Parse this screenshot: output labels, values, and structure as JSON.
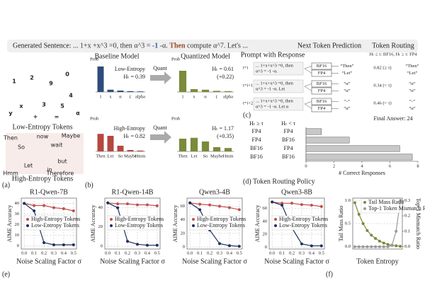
{
  "figure": {
    "sentence_label": "Generated Sentence:",
    "sentence": [
      {
        "text": " ... 1+x +x^3 =0, then α^3 = ",
        "color": "#333"
      },
      {
        "text": "-1",
        "color": "#2b5fa8"
      },
      {
        "text": " -α. ",
        "color": "#333"
      },
      {
        "text": "Then",
        "color": "#9a4a2a"
      },
      {
        "text": " compute α^7. Let's ...",
        "color": "#333"
      }
    ],
    "wordcloud_low": [
      "1",
      "2",
      "9",
      "0",
      "x",
      "3",
      "5",
      "y",
      "4",
      "+",
      "=",
      "α"
    ],
    "wordcloud_high": [
      "So",
      "wait",
      "but",
      "Let",
      "in",
      "Therefore",
      "Then",
      "Maybe",
      "Hmm",
      "now"
    ],
    "low_label": "Low-Entropy Tokens",
    "high_label": "High-Entropy Tokens",
    "baseline_title": "Baseline Model",
    "quantized_title": "Quantized Model",
    "quant_labels": [
      "Quant",
      "Quant"
    ],
    "labels": {
      "a": "(a)",
      "b": "(b)",
      "c": "(c)",
      "d": "(d) Token Routing Policy",
      "e": "(e)",
      "f": "(f)"
    },
    "routing": {
      "headers": [
        "Prompt with Response",
        "Next Token Prediction",
        "Token Routing"
      ],
      "rule": "Hₜ ≤ τ: BF16, Hₜ ≥ τ: FP4",
      "rows": [
        {
          "t": "t=i",
          "prompt": [
            "... 1+x+x^3 =0, then",
            "α^3 = -1 -α."
          ],
          "pred": [
            [
              "BF16",
              "“Then”"
            ],
            [
              "FP4",
              "“Let”"
            ]
          ],
          "route": "0.82 (≥ τ)",
          "out": [
            "“Then”",
            "“Let”"
          ]
        },
        {
          "t": "t=i+1",
          "prompt": [
            "... 1+x+x^3 =0, then",
            "α^3 = -1 -α. Let"
          ],
          "pred": [
            [
              "BF16",
              "“α”"
            ],
            [
              "FP4",
              "“α”"
            ]
          ],
          "route": "0.34 (< τ)",
          "out": [
            "“α”",
            "“α”"
          ]
        },
        {
          "t": "t=i+2",
          "prompt": [
            "... 1+x+x^3 =0, then",
            "α^3 = -1 -α. Let α"
          ],
          "pred": [
            [
              "BF16",
              "“-”"
            ],
            [
              "FP4",
              "“α”"
            ]
          ],
          "route": "0.46 (< τ)",
          "out": [
            "“-”",
            "“α”"
          ]
        }
      ],
      "final": "Final Answer: 24"
    }
  },
  "chart_data": [
    {
      "type": "bar",
      "ylabel": "Prob",
      "categories": [
        "1",
        "x",
        "α",
        "(",
        "alpha"
      ],
      "values": [
        0.9,
        0.08,
        0.05,
        0.03,
        0.02
      ],
      "color": "#2f4b7c",
      "ylim": [
        0,
        1
      ],
      "annotations": [
        "Low-Entropy",
        "Hₜ = 0.39"
      ]
    },
    {
      "type": "bar",
      "ylabel": "Prob",
      "categories": [
        "1",
        "x",
        "α",
        "(",
        "alpha"
      ],
      "values": [
        0.75,
        0.1,
        0.08,
        0.04,
        0.03
      ],
      "color": "#7a8b3a",
      "ylim": [
        0,
        1
      ],
      "annotations": [
        "Hₜ = 0.61",
        "(+0.22)"
      ]
    },
    {
      "type": "bar",
      "ylabel": "Prob",
      "categories": [
        "Then",
        "Let",
        "So",
        "Maybe",
        "Hmm"
      ],
      "values": [
        0.62,
        0.55,
        0.2,
        0.05,
        0.03
      ],
      "color": "#b5483f",
      "ylim": [
        0,
        1
      ],
      "annotations": [
        "High-Entropy",
        "Hₜ = 0.82"
      ]
    },
    {
      "type": "bar",
      "ylabel": "Prob",
      "categories": [
        "Then",
        "Let",
        "So",
        "Maybe",
        "Hmm"
      ],
      "values": [
        0.45,
        0.48,
        0.35,
        0.15,
        0.12
      ],
      "color": "#7a8b3a",
      "ylim": [
        0,
        1
      ],
      "annotations": [
        "Hₜ = 1.17",
        "(+0.35)"
      ]
    },
    {
      "type": "hbar",
      "columns": [
        "Hₜ ≥ τ",
        "Hₜ < τ"
      ],
      "rows": [
        [
          "FP4",
          "FP4"
        ],
        [
          "FP4",
          "BF16"
        ],
        [
          "BF16",
          "FP4"
        ],
        [
          "BF16",
          "BF16"
        ]
      ],
      "values": [
        1.1,
        3.1,
        6.7,
        7.6
      ],
      "color": "#c8c8c8",
      "xlim": [
        0,
        8
      ],
      "xticks": [
        0,
        2,
        4,
        6,
        8
      ],
      "xlabel": "# Correct Responses"
    },
    {
      "type": "line",
      "title": "R1-Qwen-7B",
      "ylabel": "AIME Accuracy",
      "xlabel": "Noise Scaling Factor σ",
      "x": [
        0,
        0.1,
        0.2,
        0.3,
        0.4,
        0.5
      ],
      "xlim": [
        -0.03,
        0.53
      ],
      "xticks": [
        {
          "value": 0,
          "label": "0.0"
        },
        0.1,
        0.2,
        0.3,
        0.4,
        0.5
      ],
      "ylim": [
        -3,
        45
      ],
      "yticks": [
        0,
        10,
        20,
        30,
        40
      ],
      "series": [
        {
          "name": "High-Entropy Tokens",
          "color": "#c0504d",
          "values": [
            40,
            38,
            38,
            36,
            35,
            33
          ]
        },
        {
          "name": "Low-Entropy Tokens",
          "color": "#1f3060",
          "values": [
            40,
            33,
            3,
            1,
            1,
            1
          ]
        }
      ]
    },
    {
      "type": "line",
      "title": "R1-Qwen-14B",
      "ylabel": "AIME Accuracy",
      "xlabel": "Noise Scaling Factor σ",
      "x": [
        0,
        0.1,
        0.2,
        0.3,
        0.4,
        0.5
      ],
      "xlim": [
        -0.03,
        0.53
      ],
      "xticks": [
        {
          "value": 0,
          "label": "0.0"
        },
        0.1,
        0.2,
        0.3,
        0.4,
        0.5
      ],
      "ylim": [
        -3,
        50
      ],
      "yticks": [
        0,
        20,
        40
      ],
      "series": [
        {
          "name": "High-Entropy Tokens",
          "color": "#c0504d",
          "values": [
            45,
            44,
            44,
            43,
            43,
            42
          ]
        },
        {
          "name": "Low-Entropy Tokens",
          "color": "#1f3060",
          "values": [
            45,
            40,
            5,
            2,
            1,
            1
          ]
        }
      ]
    },
    {
      "type": "line",
      "title": "Qwen3-4B",
      "ylabel": "AIME Accuracy",
      "xlabel": "Noise Scaling Factor σ",
      "x": [
        0,
        0.1,
        0.2,
        0.3,
        0.4,
        0.5
      ],
      "xlim": [
        -0.03,
        0.53
      ],
      "xticks": [
        {
          "value": 0,
          "label": "0.0"
        },
        0.1,
        0.2,
        0.3,
        0.4,
        0.5
      ],
      "ylim": [
        -3,
        72
      ],
      "yticks": [
        0,
        20,
        40,
        60
      ],
      "series": [
        {
          "name": "High-Entropy Tokens",
          "color": "#c0504d",
          "values": [
            65,
            63,
            62,
            60,
            58,
            55
          ]
        },
        {
          "name": "Low-Entropy Tokens",
          "color": "#1f3060",
          "values": [
            65,
            55,
            25,
            5,
            2,
            1
          ]
        }
      ]
    },
    {
      "type": "line",
      "title": "Qwen3-8B",
      "ylabel": "AIME Accuracy",
      "xlabel": "Noise Scaling Factor σ",
      "x": [
        0,
        0.1,
        0.2,
        0.3,
        0.4,
        0.5
      ],
      "xlim": [
        -0.03,
        0.53
      ],
      "xticks": [
        {
          "value": 0,
          "label": "0.0"
        },
        0.1,
        0.2,
        0.3,
        0.4,
        0.5
      ],
      "ylim": [
        -3,
        76
      ],
      "yticks": [
        0,
        20,
        40,
        60
      ],
      "series": [
        {
          "name": "High-Entropy Tokens",
          "color": "#c0504d",
          "values": [
            70,
            68,
            68,
            66,
            65,
            63
          ]
        },
        {
          "name": "Low-Entropy Tokens",
          "color": "#1f3060",
          "values": [
            70,
            65,
            30,
            5,
            2,
            2
          ]
        }
      ]
    },
    {
      "type": "dual",
      "ylabel": "Tail Mass Ratio",
      "y2label": "Top-1 Mismatch Ratio",
      "xlabel": "Token Entropy",
      "x": [
        0,
        1,
        2,
        3,
        4,
        5,
        6,
        7,
        8,
        9,
        10,
        11
      ],
      "xlim": [
        -0.5,
        11.5
      ],
      "ylim": [
        -0.05,
        1.05
      ],
      "yticks": [
        {
          "value": 0,
          "label": "0.0"
        },
        0.5,
        {
          "value": 1,
          "label": "1.0"
        }
      ],
      "y2lim": [
        -0.015,
        0.315
      ],
      "y2ticks": [
        {
          "value": 0,
          "label": "0.0"
        },
        0.1,
        0.2,
        0.3
      ],
      "series": [
        {
          "name": "Tail Mass Ratio",
          "color": "#7a8b3a",
          "values": [
            0.95,
            0.7,
            0.5,
            0.35,
            0.25,
            0.18,
            0.12,
            0.08,
            0.05,
            0.03,
            0.02,
            0.01
          ]
        },
        {
          "name": "Top-1 Token Mismatch Ratio",
          "color": "#999999",
          "axis": "y2",
          "values": [
            0,
            0,
            0,
            0,
            0,
            0,
            0,
            0,
            0,
            0.01,
            0.1,
            0.3
          ]
        }
      ]
    }
  ]
}
